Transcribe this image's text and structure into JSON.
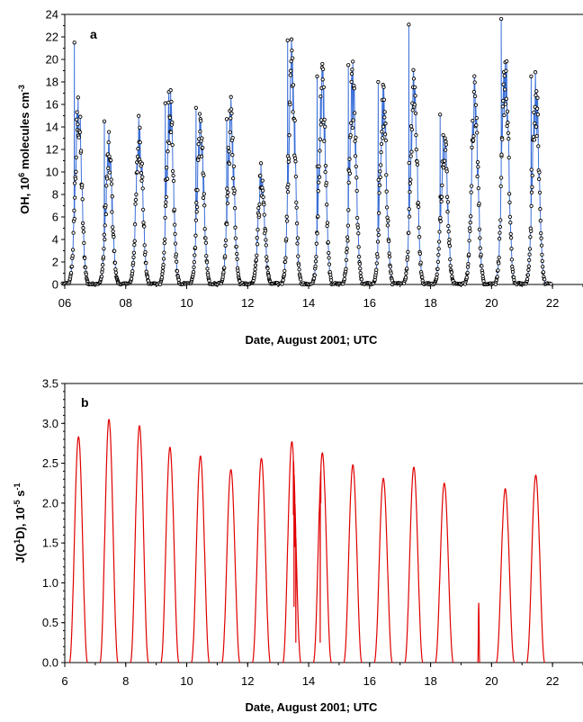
{
  "chart_data": [
    {
      "panel_label": "a",
      "type": "line",
      "x_axis_kind": "date (day of August 2001, UTC)",
      "xlabel": "Date, August 2001; UTC",
      "ylabel_parts": [
        "OH, 10",
        "6",
        " molecules cm",
        "-3"
      ],
      "xlim": [
        6,
        23
      ],
      "ylim": [
        0,
        24
      ],
      "x_ticks": [
        6,
        8,
        10,
        12,
        14,
        16,
        18,
        20,
        22
      ],
      "x_tick_labels": [
        "06",
        "08",
        "10",
        "12",
        "14",
        "16",
        "18",
        "20",
        "22"
      ],
      "y_ticks": [
        0,
        2,
        4,
        6,
        8,
        10,
        12,
        14,
        16,
        18,
        20,
        22,
        24
      ],
      "y_tick_labels": [
        "0",
        "2",
        "4",
        "6",
        "8",
        "10",
        "12",
        "14",
        "16",
        "18",
        "20",
        "22",
        "24"
      ],
      "line_color": "#3a6fd8",
      "marker_color": "#000000",
      "marker": "open circle",
      "daily_peaks": [
        {
          "x": 6.45,
          "y": 15.0,
          "spike": 21.5
        },
        {
          "x": 7.45,
          "y": 11.5,
          "spike": 14.5
        },
        {
          "x": 8.45,
          "y": 13.5,
          "spike": 0
        },
        {
          "x": 9.45,
          "y": 15.5,
          "spike": 16.1
        },
        {
          "x": 10.45,
          "y": 14.0,
          "spike": 15.7
        },
        {
          "x": 11.45,
          "y": 14.2,
          "spike": 14.7
        },
        {
          "x": 12.45,
          "y": 9.3,
          "spike": 0
        },
        {
          "x": 13.45,
          "y": 19.0,
          "spike": 21.7
        },
        {
          "x": 14.45,
          "y": 17.5,
          "spike": 18.5
        },
        {
          "x": 15.45,
          "y": 17.0,
          "spike": 19.5
        },
        {
          "x": 16.45,
          "y": 15.5,
          "spike": 18.0
        },
        {
          "x": 17.45,
          "y": 18.0,
          "spike": 23.1
        },
        {
          "x": 18.45,
          "y": 13.0,
          "spike": 15.1
        },
        {
          "x": 19.45,
          "y": 16.0,
          "spike": 0
        },
        {
          "x": 20.45,
          "y": 19.0,
          "spike": 23.6
        },
        {
          "x": 21.45,
          "y": 17.0,
          "spike": 18.5
        }
      ]
    },
    {
      "panel_label": "b",
      "type": "line",
      "x_axis_kind": "date (day of August 2001, UTC)",
      "xlabel": "Date, August 2001; UTC",
      "ylabel_parts": [
        "J(O",
        "1",
        "D), 10",
        "-5",
        " s",
        "-1"
      ],
      "xlim": [
        6,
        23
      ],
      "ylim": [
        0,
        3.5
      ],
      "x_ticks": [
        6,
        8,
        10,
        12,
        14,
        16,
        18,
        20,
        22
      ],
      "x_tick_labels": [
        "6",
        "8",
        "10",
        "12",
        "14",
        "16",
        "18",
        "20",
        "22"
      ],
      "y_ticks": [
        0,
        0.5,
        1.0,
        1.5,
        2.0,
        2.5,
        3.0,
        3.5
      ],
      "y_tick_labels": [
        "0.0",
        "0.5",
        "1.0",
        "1.5",
        "2.0",
        "2.5",
        "3.0",
        "3.5"
      ],
      "line_color": "#e00000",
      "daily_peaks": [
        {
          "x": 6.45,
          "y": 2.83
        },
        {
          "x": 7.45,
          "y": 3.05
        },
        {
          "x": 8.45,
          "y": 2.97
        },
        {
          "x": 9.45,
          "y": 2.7
        },
        {
          "x": 10.45,
          "y": 2.59
        },
        {
          "x": 11.45,
          "y": 2.42
        },
        {
          "x": 12.45,
          "y": 2.56
        },
        {
          "x": 13.45,
          "y": 2.77
        },
        {
          "x": 14.45,
          "y": 2.63
        },
        {
          "x": 15.45,
          "y": 2.48
        },
        {
          "x": 16.45,
          "y": 2.31
        },
        {
          "x": 17.45,
          "y": 2.45
        },
        {
          "x": 18.45,
          "y": 2.25
        },
        {
          "x": 19.58,
          "y": 0.75
        },
        {
          "x": 20.45,
          "y": 2.18
        },
        {
          "x": 21.45,
          "y": 2.35
        }
      ]
    }
  ]
}
